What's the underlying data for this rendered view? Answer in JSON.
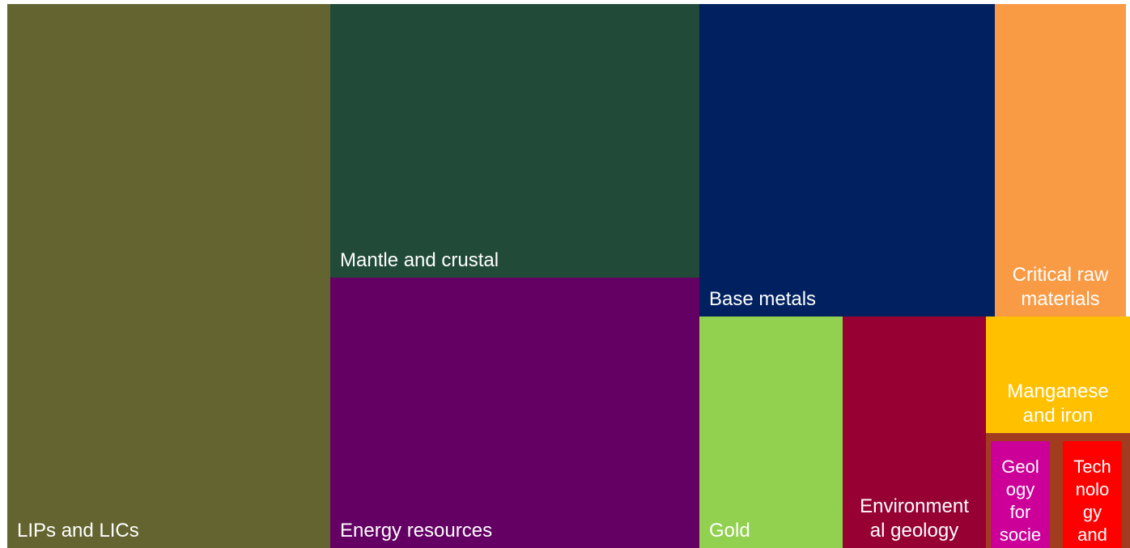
{
  "chart_data": {
    "type": "treemap",
    "items": [
      {
        "label": "LIPs and LICs",
        "display": "LIPs and LICs",
        "value": 265,
        "color": "#646431",
        "label_align": "left"
      },
      {
        "label": "Mantle and crustal",
        "display": "Mantle and crustal",
        "value": 150,
        "color": "#214a39",
        "label_align": "left"
      },
      {
        "label": "Energy resources",
        "display": "Energy resources",
        "value": 151,
        "color": "#640064",
        "label_align": "left"
      },
      {
        "label": "Base metals",
        "display": "Base metals",
        "value": 139,
        "color": "#00205f",
        "label_align": "left"
      },
      {
        "label": "Critical raw materials",
        "display": "Critical raw\nmaterials",
        "value": 67,
        "color": "#f99a45",
        "label_align": "center"
      },
      {
        "label": "Gold",
        "display": "Gold",
        "value": 40,
        "color": "#92d050",
        "label_align": "left"
      },
      {
        "label": "Environmental geology",
        "display": "Environment\nal geology",
        "value": 40,
        "color": "#960032",
        "label_align": "center"
      },
      {
        "label": "Manganese and iron",
        "display": "Manganese\nand iron",
        "value": 25,
        "color": "#ffc000",
        "label_align": "center"
      },
      {
        "label": "Geology for society",
        "display": "Geol\nogy\nfor\nsocie",
        "value": 7,
        "color": "#cc0099",
        "label_align": "center",
        "frame_color": "#a23c1e"
      },
      {
        "label": "Technology",
        "display": "Tech\nnolo\ngy\nand",
        "value": 7,
        "color": "#ff0000",
        "label_align": "center",
        "frame_color": "#a23c1e"
      }
    ]
  }
}
